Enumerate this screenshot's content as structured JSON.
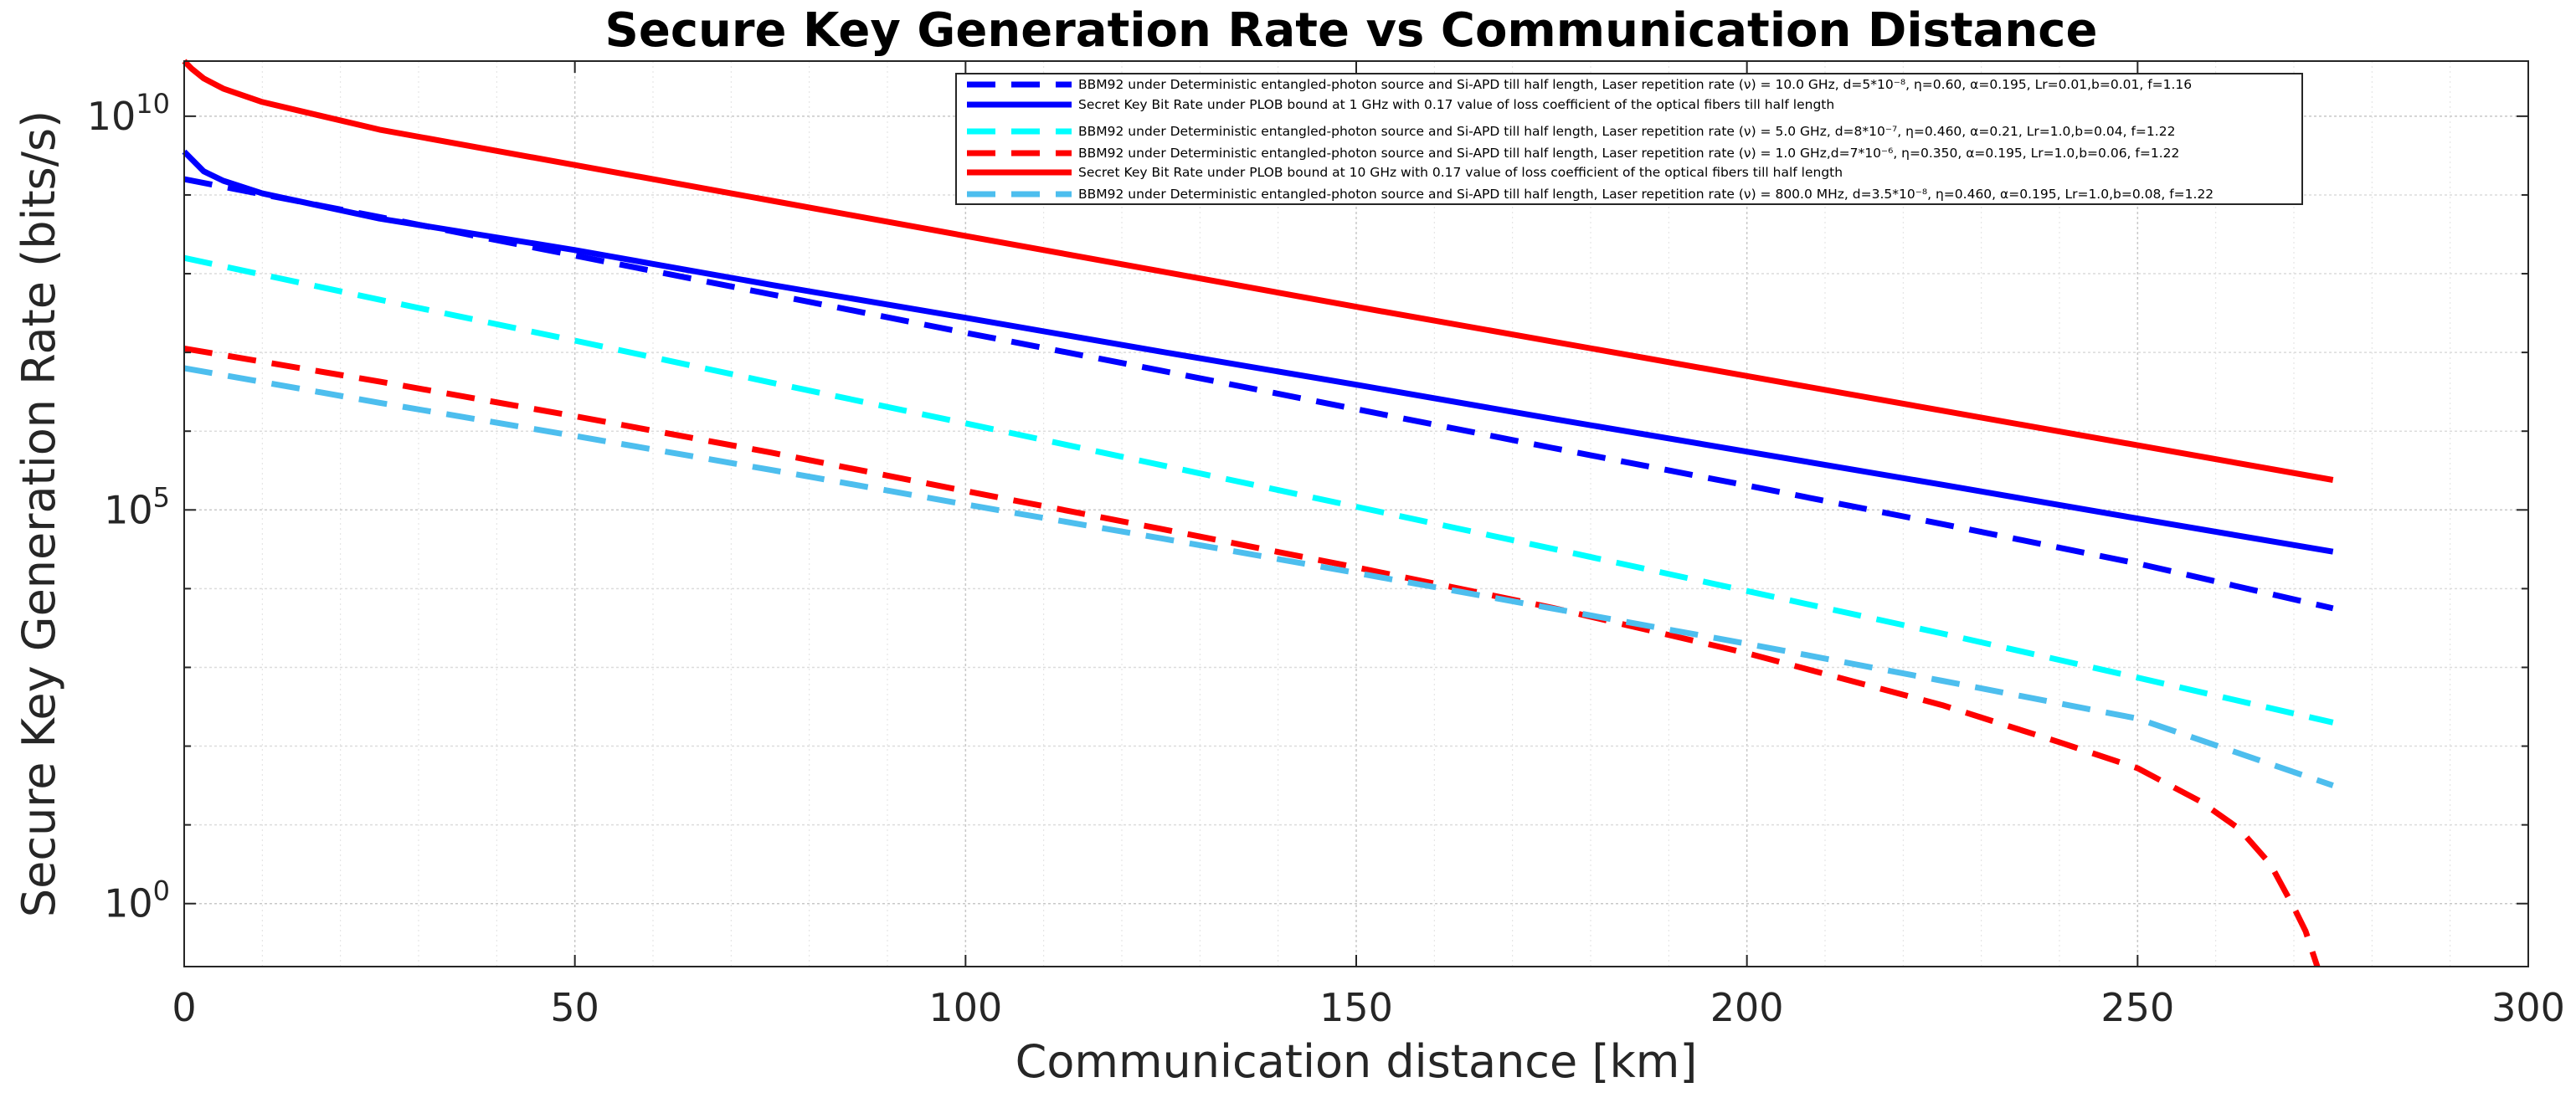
{
  "chart_data": {
    "type": "line",
    "title": "Secure Key Generation Rate vs Communication Distance",
    "xlabel": "Communication distance [km]",
    "ylabel": "Secure Key Generation Rate (bits/s)",
    "xscale": "linear",
    "yscale": "log",
    "xlim": [
      0,
      300
    ],
    "ylim_log10": [
      -0.8,
      10.7
    ],
    "xticks": [
      0,
      50,
      100,
      150,
      200,
      250,
      300
    ],
    "xtick_labels": [
      "0",
      "50",
      "100",
      "150",
      "200",
      "250",
      "300"
    ],
    "yticks_log10": [
      0,
      5,
      10
    ],
    "ytick_labels": [
      {
        "base": "10",
        "exp": "0"
      },
      {
        "base": "10",
        "exp": "5"
      },
      {
        "base": "10",
        "exp": "10"
      }
    ],
    "grid": true,
    "legend_position": "top-center",
    "series": [
      {
        "name": "BBM92 under Deterministic entangled-photon source and Si-APD till half length, Laser repetition rate (ν) = 10.0 GHz, d=5*10⁻⁸, η=0.60, α=0.195, Lr=0.01,b=0.01, f=1.16",
        "color": "#0000ff",
        "style": "dashed",
        "x": [
          0,
          25,
          50,
          75,
          100,
          125,
          150,
          175,
          200,
          225,
          250,
          275
        ],
        "log10_y": [
          9.2,
          8.72,
          8.23,
          7.74,
          7.25,
          6.77,
          6.28,
          5.79,
          5.31,
          4.82,
          4.32,
          3.75
        ]
      },
      {
        "name": "Secret Key Bit Rate under PLOB bound at 1 GHz with 0.17 value of loss coefficient of the optical fibers till half length",
        "color": "#0000ff",
        "style": "solid",
        "x": [
          0,
          1,
          2.5,
          5,
          10,
          25,
          50,
          75,
          100,
          125,
          150,
          175,
          200,
          225,
          250,
          275
        ],
        "log10_y": [
          9.55,
          9.45,
          9.3,
          9.18,
          9.02,
          8.7,
          8.3,
          7.86,
          7.44,
          7.01,
          6.59,
          6.16,
          5.74,
          5.32,
          4.89,
          4.47
        ]
      },
      {
        "name": "BBM92 under Deterministic entangled-photon source and Si-APD till half length, Laser repetition rate (ν) = 5.0 GHz, d=8*10⁻⁷, η=0.460, α=0.21, Lr=1.0,b=0.04, f=1.22",
        "color": "#00ffff",
        "style": "dashed",
        "x": [
          0,
          25,
          50,
          75,
          100,
          125,
          150,
          175,
          200,
          225,
          250,
          275
        ],
        "log10_y": [
          8.2,
          7.67,
          7.15,
          6.62,
          6.1,
          5.57,
          5.04,
          4.51,
          3.97,
          3.43,
          2.87,
          2.3
        ]
      },
      {
        "name": "BBM92 under Deterministic entangled-photon source and Si-APD till half length, Laser repetition rate (ν) = 1.0 GHz,d=7*10⁻⁶, η=0.350, α=0.195, Lr=1.0,b=0.06, f=1.22",
        "color": "#ff0000",
        "style": "dashed",
        "x": [
          0,
          25,
          50,
          75,
          100,
          125,
          150,
          175,
          200,
          225,
          240,
          250,
          258,
          263,
          267,
          270,
          271.5,
          272.5,
          273
        ],
        "log10_y": [
          7.05,
          6.63,
          6.19,
          5.73,
          5.24,
          4.76,
          4.27,
          3.76,
          3.18,
          2.52,
          2.05,
          1.72,
          1.3,
          0.95,
          0.5,
          -0.05,
          -0.35,
          -0.65,
          -0.8
        ]
      },
      {
        "name": "Secret Key Bit Rate under PLOB bound at 10 GHz with 0.17 value of loss coefficient of the optical fibers till half length",
        "color": "#ff0000",
        "style": "solid",
        "x": [
          0,
          1,
          2.5,
          5,
          10,
          25,
          50,
          75,
          100,
          125,
          150,
          175,
          200,
          225,
          250,
          275
        ],
        "log10_y": [
          10.7,
          10.6,
          10.48,
          10.35,
          10.18,
          9.83,
          9.38,
          8.93,
          8.48,
          8.03,
          7.58,
          7.14,
          6.7,
          6.26,
          5.82,
          5.38
        ]
      },
      {
        "name": "BBM92 under Deterministic entangled-photon source and Si-APD till half length, Laser repetition rate (ν) = 800.0 MHz, d=3.5*10⁻⁸, η=0.460, α=0.195, Lr=1.0,b=0.08, f=1.22",
        "color": "#4dbeee",
        "style": "dashed",
        "x": [
          0,
          25,
          50,
          75,
          100,
          125,
          150,
          175,
          200,
          225,
          250,
          275
        ],
        "log10_y": [
          6.8,
          6.36,
          5.94,
          5.51,
          5.07,
          4.64,
          4.2,
          3.75,
          3.3,
          2.83,
          2.35,
          1.5
        ]
      }
    ]
  }
}
